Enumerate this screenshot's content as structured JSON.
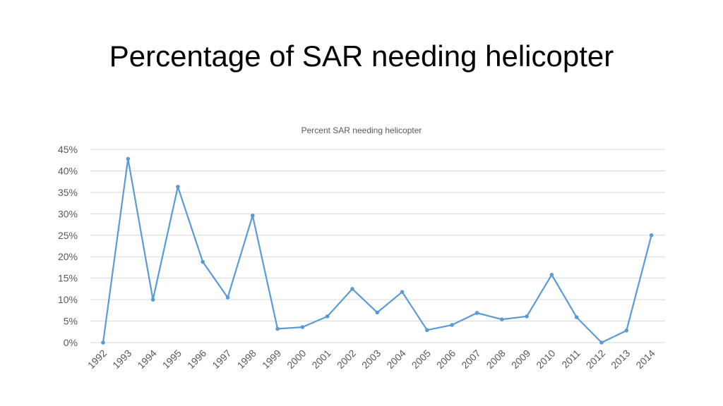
{
  "slide": {
    "title": "Percentage of SAR needing helicopter"
  },
  "colors": {
    "series": "#5b9bd5",
    "grid": "#d9d9d9",
    "text": "#595959"
  },
  "chart_data": {
    "type": "line",
    "title": "Percent SAR needing helicopter",
    "xlabel": "",
    "ylabel": "",
    "grid": true,
    "legend": "none",
    "ylim": [
      0,
      45
    ],
    "y_ticks": [
      "0%",
      "5%",
      "10%",
      "15%",
      "20%",
      "25%",
      "30%",
      "35%",
      "40%",
      "45%"
    ],
    "categories": [
      "1992",
      "1993",
      "1994",
      "1995",
      "1996",
      "1997",
      "1998",
      "1999",
      "2000",
      "2001",
      "2002",
      "2003",
      "2004",
      "2005",
      "2006",
      "2007",
      "2008",
      "2009",
      "2010",
      "2011",
      "2012",
      "2013",
      "2014"
    ],
    "series": [
      {
        "values": [
          0,
          42.8,
          10.0,
          36.3,
          18.8,
          10.5,
          29.6,
          3.2,
          3.6,
          6.1,
          12.5,
          7.0,
          11.8,
          2.9,
          4.1,
          6.9,
          5.4,
          6.1,
          15.8,
          5.9,
          0,
          2.8,
          25.0
        ]
      }
    ]
  }
}
